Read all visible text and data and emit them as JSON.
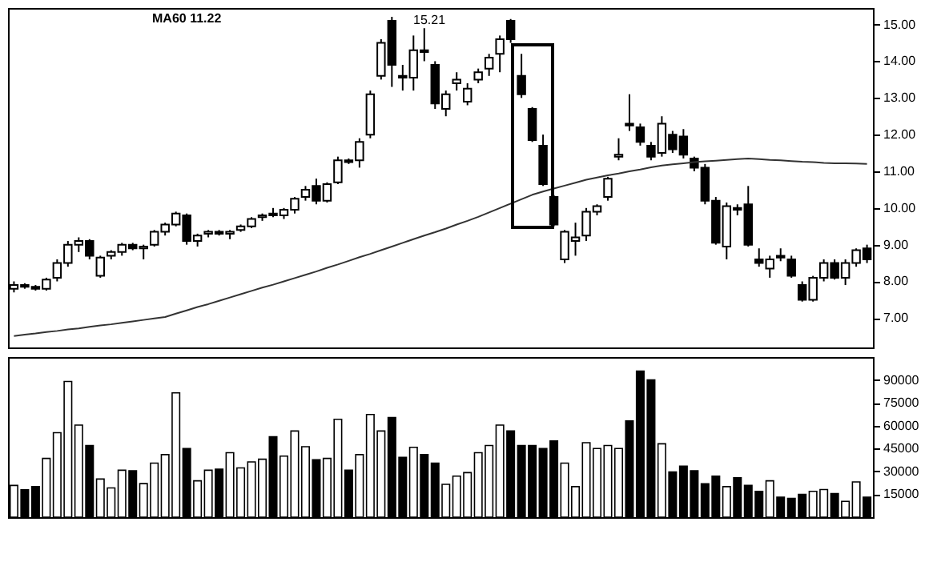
{
  "chart_data": [
    {
      "type": "candlestick",
      "categories": [
        null,
        null,
        null,
        null,
        null,
        null,
        null,
        null,
        null,
        null,
        null,
        null,
        null,
        null,
        null,
        null,
        null,
        null,
        null,
        null,
        null,
        null,
        null,
        null,
        null,
        null,
        null,
        null,
        null,
        null,
        null,
        null,
        null,
        null,
        null,
        null,
        null,
        null,
        null,
        null,
        null,
        null,
        null,
        null,
        null,
        null,
        null,
        null,
        null,
        null,
        null,
        null,
        null,
        null,
        null,
        null,
        null,
        null,
        null,
        null,
        null,
        null,
        null,
        null,
        null,
        null,
        null,
        null,
        null,
        null,
        null,
        null,
        null,
        null,
        null,
        null,
        null,
        null,
        null,
        null
      ],
      "ohlc": [
        [
          7.8,
          8.0,
          7.7,
          7.9
        ],
        [
          7.9,
          7.95,
          7.8,
          7.85
        ],
        [
          7.85,
          7.9,
          7.75,
          7.8
        ],
        [
          7.8,
          8.1,
          7.75,
          8.05
        ],
        [
          8.1,
          8.6,
          8.0,
          8.5
        ],
        [
          8.5,
          9.1,
          8.4,
          9.0
        ],
        [
          9.0,
          9.2,
          8.8,
          9.1
        ],
        [
          9.1,
          9.15,
          8.6,
          8.7
        ],
        [
          8.15,
          8.7,
          8.1,
          8.65
        ],
        [
          8.7,
          8.85,
          8.6,
          8.8
        ],
        [
          8.8,
          9.05,
          8.7,
          9.0
        ],
        [
          9.0,
          9.05,
          8.85,
          8.9
        ],
        [
          8.9,
          9.0,
          8.6,
          8.95
        ],
        [
          9.0,
          9.4,
          8.95,
          9.35
        ],
        [
          9.35,
          9.6,
          9.25,
          9.55
        ],
        [
          9.55,
          9.9,
          9.5,
          9.85
        ],
        [
          9.8,
          9.85,
          9.0,
          9.1
        ],
        [
          9.1,
          9.3,
          8.95,
          9.25
        ],
        [
          9.3,
          9.4,
          9.2,
          9.35
        ],
        [
          9.35,
          9.4,
          9.25,
          9.3
        ],
        [
          9.3,
          9.4,
          9.15,
          9.35
        ],
        [
          9.4,
          9.55,
          9.35,
          9.5
        ],
        [
          9.5,
          9.75,
          9.45,
          9.7
        ],
        [
          9.75,
          9.85,
          9.65,
          9.8
        ],
        [
          9.85,
          10.0,
          9.75,
          9.8
        ],
        [
          9.8,
          10.0,
          9.7,
          9.95
        ],
        [
          9.95,
          10.3,
          9.85,
          10.25
        ],
        [
          10.3,
          10.6,
          10.2,
          10.5
        ],
        [
          10.6,
          10.8,
          10.1,
          10.2
        ],
        [
          10.2,
          10.7,
          10.15,
          10.65
        ],
        [
          10.7,
          11.4,
          10.65,
          11.3
        ],
        [
          11.3,
          11.35,
          11.2,
          11.25
        ],
        [
          11.3,
          11.9,
          11.1,
          11.8
        ],
        [
          12.0,
          13.2,
          11.9,
          13.1
        ],
        [
          13.6,
          14.6,
          13.5,
          14.5
        ],
        [
          15.1,
          15.21,
          13.3,
          13.9
        ],
        [
          13.6,
          13.9,
          13.2,
          13.55
        ],
        [
          13.55,
          14.7,
          13.2,
          14.3
        ],
        [
          14.3,
          14.9,
          14.0,
          14.25
        ],
        [
          13.9,
          14.0,
          12.7,
          12.85
        ],
        [
          12.7,
          13.2,
          12.5,
          13.1
        ],
        [
          13.4,
          13.7,
          13.2,
          13.5
        ],
        [
          12.9,
          13.4,
          12.8,
          13.25
        ],
        [
          13.5,
          13.8,
          13.4,
          13.7
        ],
        [
          13.8,
          14.2,
          13.6,
          14.1
        ],
        [
          14.2,
          14.7,
          13.7,
          14.6
        ],
        [
          15.1,
          15.15,
          14.5,
          14.6
        ],
        [
          13.6,
          14.2,
          13.0,
          13.1
        ],
        [
          12.7,
          12.75,
          11.8,
          11.85
        ],
        [
          11.7,
          12.0,
          10.6,
          10.65
        ],
        [
          10.3,
          10.35,
          9.5,
          9.55
        ],
        [
          8.6,
          9.4,
          8.5,
          9.35
        ],
        [
          9.1,
          9.6,
          8.7,
          9.2
        ],
        [
          9.25,
          10.0,
          9.1,
          9.9
        ],
        [
          9.9,
          10.1,
          9.8,
          10.05
        ],
        [
          10.3,
          10.85,
          10.2,
          10.8
        ],
        [
          11.4,
          11.9,
          11.3,
          11.45
        ],
        [
          12.3,
          13.1,
          12.1,
          12.25
        ],
        [
          12.2,
          12.3,
          11.7,
          11.8
        ],
        [
          11.7,
          11.8,
          11.3,
          11.4
        ],
        [
          11.5,
          12.5,
          11.4,
          12.3
        ],
        [
          12.0,
          12.1,
          11.5,
          11.6
        ],
        [
          11.95,
          12.15,
          11.35,
          11.45
        ],
        [
          11.35,
          11.4,
          11.0,
          11.1
        ],
        [
          11.1,
          11.2,
          10.1,
          10.2
        ],
        [
          10.2,
          10.3,
          9.0,
          9.05
        ],
        [
          8.95,
          10.15,
          8.6,
          10.05
        ],
        [
          10.0,
          10.1,
          9.8,
          9.95
        ],
        [
          10.1,
          10.6,
          8.95,
          9.0
        ],
        [
          8.6,
          8.9,
          8.4,
          8.5
        ],
        [
          8.35,
          8.7,
          8.1,
          8.6
        ],
        [
          8.7,
          8.9,
          8.55,
          8.65
        ],
        [
          8.6,
          8.7,
          8.1,
          8.15
        ],
        [
          7.9,
          8.0,
          7.45,
          7.5
        ],
        [
          7.5,
          8.15,
          7.45,
          8.1
        ],
        [
          8.1,
          8.6,
          8.0,
          8.5
        ],
        [
          8.5,
          8.6,
          8.05,
          8.1
        ],
        [
          8.1,
          8.6,
          7.9,
          8.5
        ],
        [
          8.5,
          8.9,
          8.4,
          8.85
        ],
        [
          8.9,
          9.0,
          8.5,
          8.6
        ]
      ],
      "colors": [
        "#ffffff",
        "#000000",
        "#000000",
        "#ffffff",
        "#ffffff",
        "#ffffff",
        "#ffffff",
        "#000000",
        "#ffffff",
        "#ffffff",
        "#ffffff",
        "#000000",
        "#ffffff",
        "#ffffff",
        "#ffffff",
        "#ffffff",
        "#000000",
        "#ffffff",
        "#ffffff",
        "#000000",
        "#ffffff",
        "#ffffff",
        "#ffffff",
        "#ffffff",
        "#000000",
        "#ffffff",
        "#ffffff",
        "#ffffff",
        "#000000",
        "#ffffff",
        "#ffffff",
        "#000000",
        "#ffffff",
        "#ffffff",
        "#ffffff",
        "#000000",
        "#000000",
        "#ffffff",
        "#000000",
        "#000000",
        "#ffffff",
        "#ffffff",
        "#ffffff",
        "#ffffff",
        "#ffffff",
        "#ffffff",
        "#000000",
        "#000000",
        "#000000",
        "#000000",
        "#000000",
        "#ffffff",
        "#ffffff",
        "#ffffff",
        "#ffffff",
        "#ffffff",
        "#ffffff",
        "#000000",
        "#000000",
        "#000000",
        "#ffffff",
        "#000000",
        "#000000",
        "#000000",
        "#000000",
        "#000000",
        "#ffffff",
        "#000000",
        "#000000",
        "#000000",
        "#ffffff",
        "#000000",
        "#000000",
        "#000000",
        "#ffffff",
        "#ffffff",
        "#000000",
        "#ffffff",
        "#ffffff",
        "#000000"
      ],
      "series": [
        {
          "type": "line",
          "color": "#333333",
          "values": [
            6.51,
            6.55,
            6.58,
            6.62,
            6.65,
            6.69,
            6.72,
            6.76,
            6.8,
            6.83,
            6.87,
            6.91,
            6.95,
            6.99,
            7.03,
            7.12,
            7.21,
            7.3,
            7.38,
            7.47,
            7.56,
            7.65,
            7.74,
            7.83,
            7.91,
            8.0,
            8.09,
            8.18,
            8.27,
            8.37,
            8.46,
            8.56,
            8.66,
            8.75,
            8.85,
            8.95,
            9.05,
            9.15,
            9.25,
            9.34,
            9.44,
            9.55,
            9.65,
            9.76,
            9.88,
            10.0,
            10.12,
            10.24,
            10.36,
            10.45,
            10.53,
            10.61,
            10.69,
            10.77,
            10.83,
            10.89,
            10.94,
            11.0,
            11.05,
            11.11,
            11.16,
            11.19,
            11.22,
            11.25,
            11.27,
            11.29,
            11.31,
            11.33,
            11.35,
            11.33,
            11.31,
            11.3,
            11.28,
            11.26,
            11.25,
            11.23,
            11.22,
            11.22,
            11.21,
            11.2
          ]
        }
      ],
      "ylim": [
        6.2,
        15.45
      ],
      "yticks": [
        {
          "value": 7,
          "label": "7.00"
        },
        {
          "value": 8,
          "label": "8.00"
        },
        {
          "value": 9,
          "label": "9.00"
        },
        {
          "value": 10,
          "label": "10.00"
        },
        {
          "value": 11,
          "label": "11.00"
        },
        {
          "value": 12,
          "label": "12.00"
        },
        {
          "value": 13,
          "label": "13.00"
        },
        {
          "value": 14,
          "label": "14.00"
        },
        {
          "value": 15,
          "label": "15.00"
        }
      ],
      "tick_labels": "y",
      "annotations": [
        "MA60 11.22",
        "15.21"
      ]
    },
    {
      "type": "bar",
      "categories": [
        null,
        null,
        null,
        null,
        null,
        null,
        null,
        null,
        null,
        null,
        null,
        null,
        null,
        null,
        null,
        null,
        null,
        null,
        null,
        null,
        null,
        null,
        null,
        null,
        null,
        null,
        null,
        null,
        null,
        null,
        null,
        null,
        null,
        null,
        null,
        null,
        null,
        null,
        null,
        null,
        null,
        null,
        null,
        null,
        null,
        null,
        null,
        null,
        null,
        null,
        null,
        null,
        null,
        null,
        null,
        null,
        null,
        null,
        null,
        null,
        null,
        null,
        null,
        null,
        null,
        null,
        null,
        null,
        null,
        null,
        null,
        null,
        null,
        null,
        null,
        null,
        null,
        null,
        null,
        null
      ],
      "values": [
        20800,
        18000,
        20000,
        38500,
        55400,
        89000,
        60400,
        47000,
        25000,
        19200,
        30800,
        30400,
        22000,
        35400,
        41000,
        81500,
        45000,
        23800,
        30800,
        31500,
        42300,
        32300,
        36200,
        38000,
        52700,
        40000,
        56500,
        46200,
        37700,
        38500,
        64200,
        30800,
        41000,
        67300,
        56500,
        65400,
        39200,
        45800,
        41000,
        35400,
        21500,
        26900,
        29200,
        42300,
        47000,
        60400,
        56500,
        47000,
        47000,
        45000,
        50000,
        35400,
        20000,
        48800,
        45000,
        47000,
        45000,
        63100,
        95800,
        90000,
        48100,
        29600,
        33500,
        30400,
        21900,
        26900,
        20000,
        25800,
        20800,
        16900,
        23800,
        13100,
        12300,
        15000,
        16900,
        18100,
        15400,
        10400,
        23100,
        13100
      ],
      "colors": [
        "#ffffff",
        "#000000",
        "#000000",
        "#ffffff",
        "#ffffff",
        "#ffffff",
        "#ffffff",
        "#000000",
        "#ffffff",
        "#ffffff",
        "#ffffff",
        "#000000",
        "#ffffff",
        "#ffffff",
        "#ffffff",
        "#ffffff",
        "#000000",
        "#ffffff",
        "#ffffff",
        "#000000",
        "#ffffff",
        "#ffffff",
        "#ffffff",
        "#ffffff",
        "#000000",
        "#ffffff",
        "#ffffff",
        "#ffffff",
        "#000000",
        "#ffffff",
        "#ffffff",
        "#000000",
        "#ffffff",
        "#ffffff",
        "#ffffff",
        "#000000",
        "#000000",
        "#ffffff",
        "#000000",
        "#000000",
        "#ffffff",
        "#ffffff",
        "#ffffff",
        "#ffffff",
        "#ffffff",
        "#ffffff",
        "#000000",
        "#000000",
        "#000000",
        "#000000",
        "#000000",
        "#ffffff",
        "#ffffff",
        "#ffffff",
        "#ffffff",
        "#ffffff",
        "#ffffff",
        "#000000",
        "#000000",
        "#000000",
        "#ffffff",
        "#000000",
        "#000000",
        "#000000",
        "#000000",
        "#000000",
        "#ffffff",
        "#000000",
        "#000000",
        "#000000",
        "#ffffff",
        "#000000",
        "#000000",
        "#000000",
        "#ffffff",
        "#ffffff",
        "#000000",
        "#ffffff",
        "#ffffff",
        "#000000"
      ],
      "ylim": [
        0,
        105000
      ],
      "yticks": [
        15000,
        30000,
        45000,
        60000,
        75000,
        90000
      ],
      "tick_labels": "y"
    }
  ]
}
